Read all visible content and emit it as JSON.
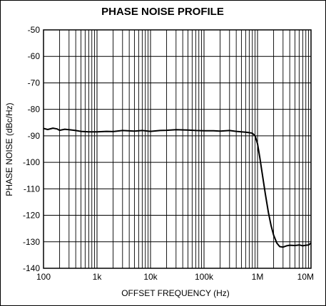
{
  "chart_data": {
    "type": "line",
    "title": "PHASE NOISE PROFILE",
    "xlabel": "OFFSET FREQUENCY (Hz)",
    "ylabel": "PHASE NOISE (dBc/Hz)",
    "xscale": "log",
    "xlim": [
      100,
      10000000
    ],
    "ylim": [
      -140,
      -50
    ],
    "grid": true,
    "xticks": [
      100,
      1000,
      10000,
      100000,
      1000000,
      10000000
    ],
    "xtick_labels": [
      "100",
      "1k",
      "10k",
      "100k",
      "1M",
      "10M"
    ],
    "yticks": [
      -50,
      -60,
      -70,
      -80,
      -90,
      -100,
      -110,
      -120,
      -130,
      -140
    ],
    "ytick_labels": [
      "-50",
      "-60",
      "-70",
      "-80",
      "-90",
      "-100",
      "-110",
      "-120",
      "-130",
      "-140"
    ],
    "series": [
      {
        "color": "#000000",
        "x": [
          100,
          120,
          150,
          180,
          200,
          250,
          300,
          400,
          500,
          700,
          1000,
          1500,
          2000,
          3000,
          5000,
          7000,
          10000,
          15000,
          20000,
          30000,
          50000,
          70000,
          100000,
          150000,
          200000,
          300000,
          400000,
          500000,
          600000,
          700000,
          800000,
          900000,
          1000000,
          1100000,
          1200000,
          1400000,
          1600000,
          1800000,
          2000000,
          2300000,
          2600000,
          3000000,
          3500000,
          4000000,
          5000000,
          6000000,
          7000000,
          8000000,
          9000000,
          10000000
        ],
        "y": [
          -87.2,
          -87.6,
          -87.1,
          -87.4,
          -87.9,
          -87.5,
          -87.7,
          -88.0,
          -88.3,
          -88.5,
          -88.5,
          -88.3,
          -88.4,
          -88.0,
          -88.2,
          -88.0,
          -88.3,
          -88.0,
          -87.9,
          -87.7,
          -87.8,
          -88.0,
          -88.1,
          -88.1,
          -88.2,
          -88.0,
          -88.3,
          -88.5,
          -88.6,
          -88.8,
          -89.0,
          -90.0,
          -93.0,
          -98.0,
          -103.0,
          -112.0,
          -119.0,
          -124.0,
          -127.5,
          -130.5,
          -131.8,
          -132.0,
          -131.5,
          -131.3,
          -131.4,
          -131.2,
          -131.5,
          -131.3,
          -131.2,
          -130.5
        ]
      }
    ]
  }
}
